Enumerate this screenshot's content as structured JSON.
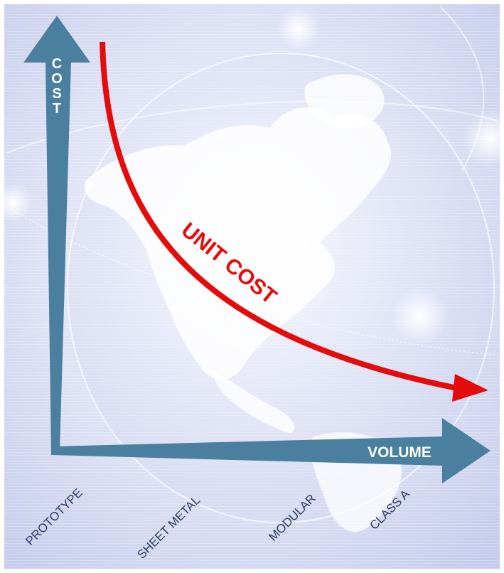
{
  "diagram": {
    "y_axis_label": "COST",
    "x_axis_label": "VOLUME",
    "curve_label": "UNIT COST",
    "categories": [
      "PROTOTYPE",
      "SHEET METAL",
      "MODULAR",
      "CLASS A"
    ],
    "colors": {
      "background_light": "#eef0fb",
      "background_mid": "#cfd5ef",
      "axis_blue": "#4a7f9f",
      "curve_red": "#e50b0b",
      "land": "#ffffff",
      "category_text": "#2b3a66"
    }
  }
}
